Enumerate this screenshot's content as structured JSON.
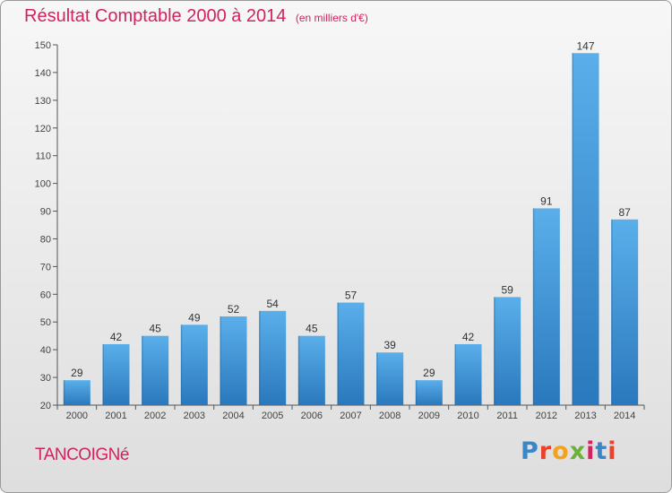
{
  "header": {
    "title": "Résultat Comptable 2000 à 2014",
    "subtitle": "(en milliers d'€)"
  },
  "footer": {
    "commune": "TANCOIGNé",
    "logo": {
      "text": "Proxiti",
      "colors": [
        "#3b86c8",
        "#e8412c",
        "#f2a21b",
        "#6ab33a",
        "#d4215f",
        "#3b86c8",
        "#e8412c"
      ]
    }
  },
  "chart_data": {
    "type": "bar",
    "categories": [
      "2000",
      "2001",
      "2002",
      "2003",
      "2004",
      "2005",
      "2006",
      "2007",
      "2008",
      "2009",
      "2010",
      "2011",
      "2012",
      "2013",
      "2014"
    ],
    "values": [
      29,
      42,
      45,
      49,
      52,
      54,
      45,
      57,
      39,
      29,
      42,
      59,
      91,
      147,
      87
    ],
    "ylim": [
      20,
      150
    ],
    "yticks": [
      20,
      30,
      40,
      50,
      60,
      70,
      80,
      90,
      100,
      110,
      120,
      130,
      140,
      150
    ],
    "grid": false,
    "bar_color": "#3b8fd6",
    "data_labels": true
  }
}
